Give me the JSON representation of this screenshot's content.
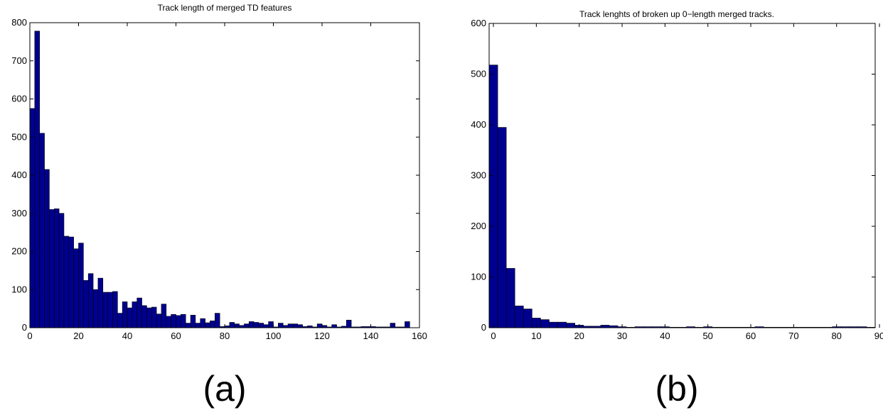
{
  "colors": {
    "bar_fill": "#00008f",
    "bar_edge": "#000000",
    "background": "#ffffff"
  },
  "chart_data": [
    {
      "type": "bar",
      "title": "Track length of merged TD features",
      "panel_label": "(a)",
      "xlabel": "",
      "ylabel": "",
      "xlim": [
        0,
        160
      ],
      "ylim": [
        0,
        800
      ],
      "xticks": [
        0,
        20,
        40,
        60,
        80,
        100,
        120,
        140,
        160
      ],
      "yticks": [
        0,
        100,
        200,
        300,
        400,
        500,
        600,
        700,
        800
      ],
      "grid": false,
      "bin_width": 2,
      "bin_starts": [
        0,
        2,
        4,
        6,
        8,
        10,
        12,
        14,
        16,
        18,
        20,
        22,
        24,
        26,
        28,
        30,
        32,
        34,
        36,
        38,
        40,
        42,
        44,
        46,
        48,
        50,
        52,
        54,
        56,
        58,
        60,
        62,
        64,
        66,
        68,
        70,
        72,
        74,
        76,
        78,
        80,
        82,
        84,
        86,
        88,
        90,
        92,
        94,
        96,
        98,
        100,
        102,
        104,
        106,
        108,
        110,
        112,
        114,
        116,
        118,
        120,
        122,
        124,
        126,
        128,
        130,
        132,
        134,
        136,
        138,
        140,
        142,
        144,
        146,
        148,
        150,
        152,
        154
      ],
      "values": [
        575,
        778,
        510,
        415,
        310,
        312,
        300,
        240,
        238,
        207,
        222,
        124,
        142,
        100,
        130,
        93,
        93,
        95,
        38,
        68,
        52,
        68,
        78,
        58,
        52,
        54,
        36,
        62,
        30,
        35,
        32,
        35,
        12,
        33,
        12,
        24,
        13,
        18,
        38,
        3,
        5,
        14,
        10,
        6,
        10,
        16,
        14,
        12,
        8,
        16,
        2,
        12,
        6,
        10,
        10,
        8,
        3,
        5,
        2,
        10,
        6,
        2,
        8,
        2,
        4,
        20,
        2,
        2,
        3,
        3,
        3,
        2,
        2,
        2,
        12,
        2,
        2,
        16
      ]
    },
    {
      "type": "bar",
      "title": "Track lenghts of broken up 0−length merged tracks.",
      "panel_label": "(b)",
      "xlabel": "",
      "ylabel": "",
      "xlim": [
        -1,
        89
      ],
      "ylim": [
        0,
        600
      ],
      "xticks": [
        0,
        10,
        20,
        30,
        40,
        50,
        60,
        70,
        80,
        90
      ],
      "yticks": [
        0,
        100,
        200,
        300,
        400,
        500,
        600
      ],
      "grid": false,
      "bin_width": 2,
      "bin_starts": [
        -1,
        1,
        3,
        5,
        7,
        9,
        11,
        13,
        15,
        17,
        19,
        21,
        23,
        25,
        27,
        29,
        31,
        33,
        35,
        37,
        39,
        41,
        43,
        45,
        47,
        49,
        51,
        53,
        55,
        57,
        59,
        61,
        63,
        65,
        67,
        69,
        71,
        73,
        75,
        77,
        79,
        81,
        83,
        85,
        87
      ],
      "values": [
        518,
        395,
        117,
        43,
        37,
        19,
        16,
        11,
        11,
        9,
        5,
        3,
        3,
        5,
        4,
        2,
        1,
        2,
        2,
        2,
        2,
        1,
        1,
        2,
        1,
        2,
        1,
        1,
        1,
        1,
        1,
        2,
        1,
        1,
        1,
        1,
        1,
        1,
        1,
        1,
        2,
        2,
        2,
        2,
        1
      ]
    }
  ]
}
